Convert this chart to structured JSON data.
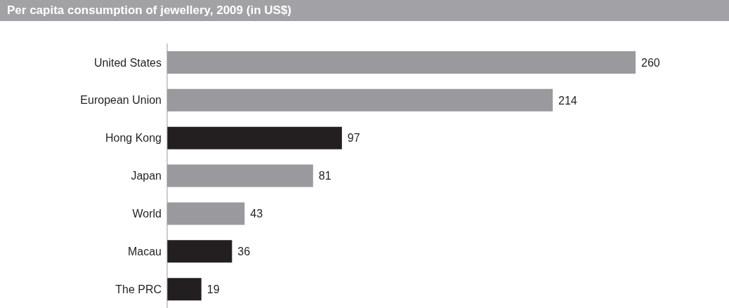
{
  "chart_data": {
    "type": "bar",
    "orientation": "horizontal",
    "title": "Per capita consumption of jewellery, 2009 (in US$)",
    "categories": [
      "United States",
      "European Union",
      "Hong Kong",
      "Japan",
      "World",
      "Macau",
      "The PRC"
    ],
    "values": [
      260,
      214,
      97,
      81,
      43,
      36,
      19
    ],
    "colors": [
      "#9a9a9e",
      "#9a9a9e",
      "#231f20",
      "#9a9a9e",
      "#9a9a9e",
      "#231f20",
      "#231f20"
    ],
    "data_labels": true
  }
}
